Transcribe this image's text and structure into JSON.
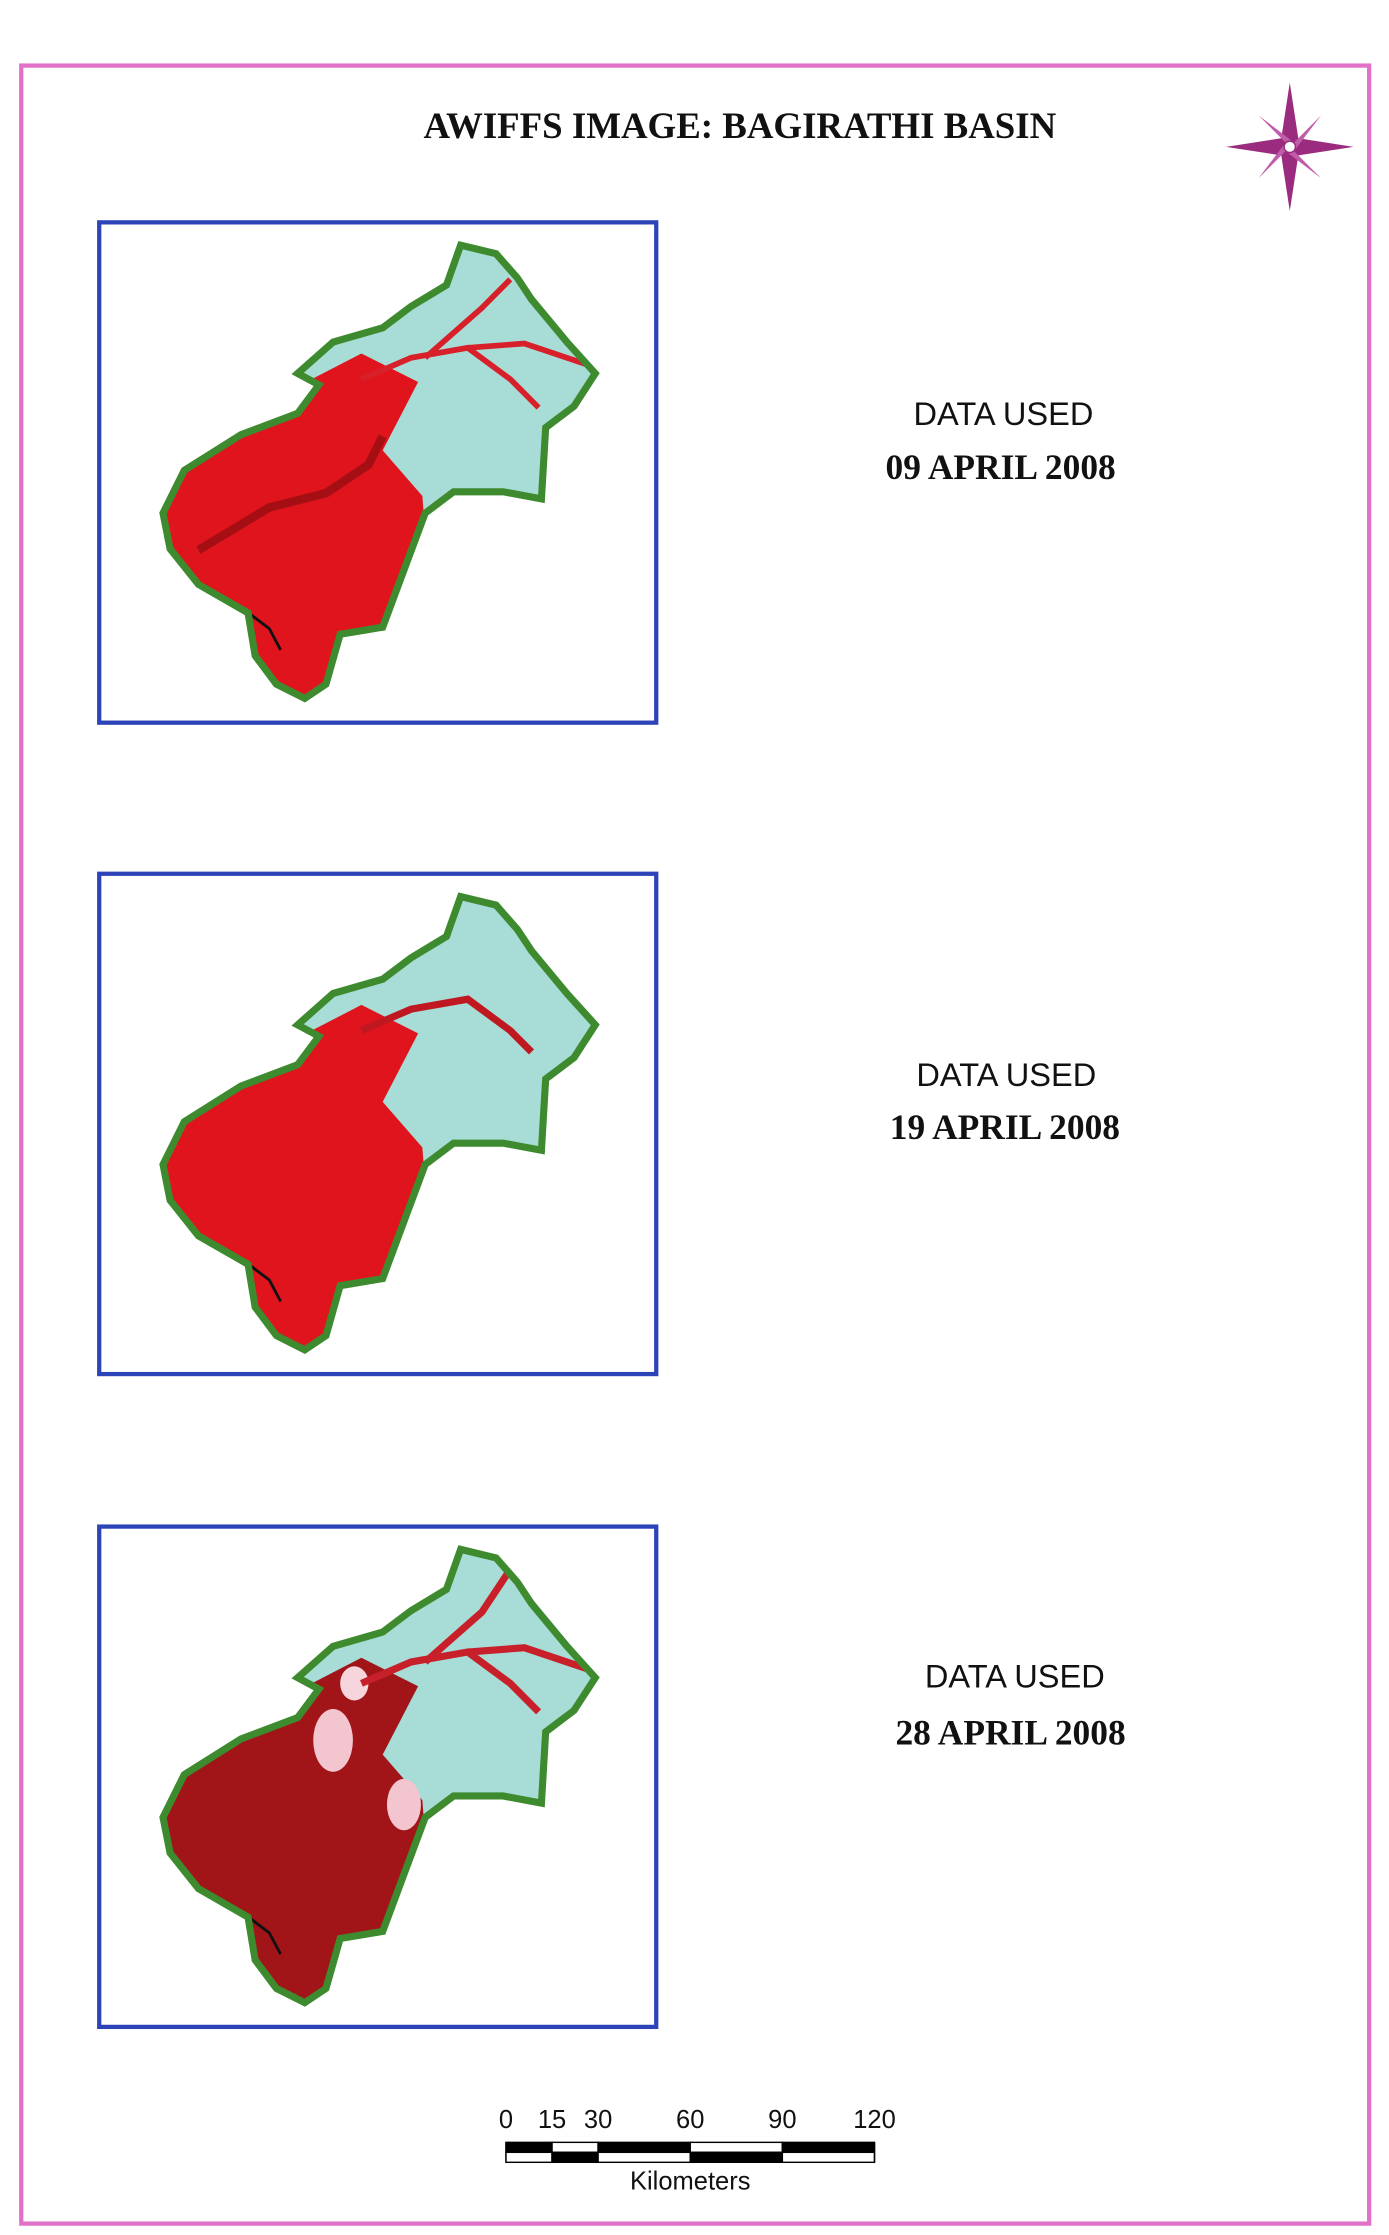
{
  "title": "AWIFFS IMAGE: BAGIRATHI BASIN",
  "panels": [
    {
      "label": "DATA USED",
      "date": "09 APRIL 2008"
    },
    {
      "label": "DATA USED",
      "date": "19 APRIL 2008"
    },
    {
      "label": "DATA USED",
      "date": "28 APRIL 2008"
    }
  ],
  "scale_bar": {
    "ticks": [
      0,
      15,
      30,
      60,
      90,
      120
    ],
    "unit": "Kilometers"
  }
}
